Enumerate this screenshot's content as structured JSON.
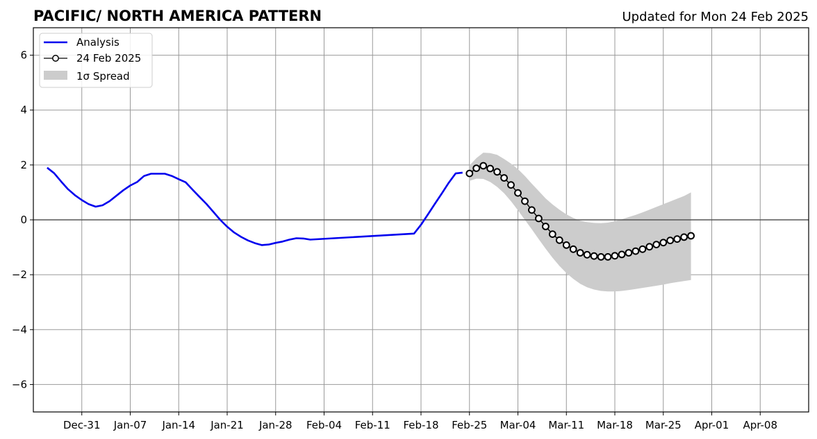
{
  "chart_data": {
    "type": "line",
    "title": "PACIFIC/ NORTH AMERICA PATTERN",
    "subtitle": "Updated for Mon 24 Feb 2025",
    "ylim": [
      -7,
      7
    ],
    "yticks": [
      -6,
      -4,
      -2,
      0,
      2,
      4,
      6
    ],
    "ytick_labels": [
      "−6",
      "−4",
      "−2",
      "0",
      "2",
      "4",
      "6"
    ],
    "x_start": "2024-12-24",
    "x_end": "2025-04-15",
    "xtick_dates": [
      "2024-12-31",
      "2025-01-07",
      "2025-01-14",
      "2025-01-21",
      "2025-01-28",
      "2025-02-04",
      "2025-02-11",
      "2025-02-18",
      "2025-02-25",
      "2025-03-04",
      "2025-03-11",
      "2025-03-18",
      "2025-03-25",
      "2025-04-01",
      "2025-04-08"
    ],
    "xtick_labels": [
      "Dec-31",
      "Jan-07",
      "Jan-14",
      "Jan-21",
      "Jan-28",
      "Feb-04",
      "Feb-11",
      "Feb-18",
      "Feb-25",
      "Mar-04",
      "Mar-11",
      "Mar-18",
      "Mar-25",
      "Apr-01",
      "Apr-08"
    ],
    "grid": true,
    "legend_position": "top-left",
    "legend": [
      "Analysis",
      "24 Feb 2025",
      "1σ Spread"
    ],
    "colors": {
      "analysis": "#0000ee",
      "forecast_line": "#000000",
      "spread": "#cccccc",
      "grid": "#999999",
      "zero_line": "#555555"
    },
    "series": [
      {
        "name": "Analysis",
        "x": [
          "2024-12-26",
          "2024-12-27",
          "2024-12-28",
          "2024-12-29",
          "2024-12-30",
          "2024-12-31",
          "2025-01-01",
          "2025-01-02",
          "2025-01-03",
          "2025-01-04",
          "2025-01-05",
          "2025-01-06",
          "2025-01-07",
          "2025-01-08",
          "2025-01-09",
          "2025-01-10",
          "2025-01-11",
          "2025-01-12",
          "2025-01-13",
          "2025-01-14",
          "2025-01-15",
          "2025-01-16",
          "2025-01-17",
          "2025-01-18",
          "2025-01-19",
          "2025-01-20",
          "2025-01-21",
          "2025-01-22",
          "2025-01-23",
          "2025-01-24",
          "2025-01-25",
          "2025-01-26",
          "2025-01-27",
          "2025-01-28",
          "2025-01-29",
          "2025-01-30",
          "2025-01-31",
          "2025-02-01",
          "2025-02-02",
          "2025-02-17",
          "2025-02-18",
          "2025-02-19",
          "2025-02-20",
          "2025-02-21",
          "2025-02-22",
          "2025-02-23",
          "2025-02-24"
        ],
        "values": [
          1.9,
          1.7,
          1.4,
          1.12,
          0.9,
          0.72,
          0.57,
          0.48,
          0.53,
          0.68,
          0.88,
          1.08,
          1.25,
          1.38,
          1.6,
          1.68,
          1.68,
          1.68,
          1.6,
          1.48,
          1.37,
          1.1,
          0.84,
          0.58,
          0.29,
          0.0,
          -0.25,
          -0.46,
          -0.62,
          -0.75,
          -0.85,
          -0.92,
          -0.9,
          -0.84,
          -0.79,
          -0.72,
          -0.67,
          -0.68,
          -0.72,
          -0.5,
          -0.18,
          0.2,
          0.58,
          0.96,
          1.35,
          1.69,
          1.72
        ]
      },
      {
        "name": "24 Feb 2025",
        "x": [
          "2025-02-25",
          "2025-02-26",
          "2025-02-27",
          "2025-02-28",
          "2025-03-01",
          "2025-03-02",
          "2025-03-03",
          "2025-03-04",
          "2025-03-05",
          "2025-03-06",
          "2025-03-07",
          "2025-03-08",
          "2025-03-09",
          "2025-03-10",
          "2025-03-11",
          "2025-03-12",
          "2025-03-13",
          "2025-03-14",
          "2025-03-15",
          "2025-03-16",
          "2025-03-17",
          "2025-03-18",
          "2025-03-19",
          "2025-03-20",
          "2025-03-21",
          "2025-03-22",
          "2025-03-23",
          "2025-03-24",
          "2025-03-25",
          "2025-03-26",
          "2025-03-27",
          "2025-03-28",
          "2025-03-29"
        ],
        "values": [
          1.69,
          1.88,
          1.97,
          1.87,
          1.75,
          1.53,
          1.27,
          0.98,
          0.68,
          0.36,
          0.05,
          -0.24,
          -0.52,
          -0.74,
          -0.92,
          -1.07,
          -1.2,
          -1.27,
          -1.32,
          -1.35,
          -1.35,
          -1.31,
          -1.26,
          -1.2,
          -1.14,
          -1.07,
          -0.98,
          -0.9,
          -0.83,
          -0.75,
          -0.7,
          -0.63,
          -0.58
        ]
      }
    ],
    "spread": {
      "name": "1σ Spread",
      "x": [
        "2025-02-25",
        "2025-02-26",
        "2025-02-27",
        "2025-02-28",
        "2025-03-01",
        "2025-03-02",
        "2025-03-03",
        "2025-03-04",
        "2025-03-05",
        "2025-03-06",
        "2025-03-07",
        "2025-03-08",
        "2025-03-09",
        "2025-03-10",
        "2025-03-11",
        "2025-03-12",
        "2025-03-13",
        "2025-03-14",
        "2025-03-15",
        "2025-03-16",
        "2025-03-17",
        "2025-03-18",
        "2025-03-19",
        "2025-03-20",
        "2025-03-21",
        "2025-03-22",
        "2025-03-23",
        "2025-03-24",
        "2025-03-25",
        "2025-03-26",
        "2025-03-27",
        "2025-03-28",
        "2025-03-29"
      ],
      "upper": [
        1.98,
        2.25,
        2.45,
        2.43,
        2.37,
        2.22,
        2.05,
        1.85,
        1.6,
        1.32,
        1.05,
        0.78,
        0.56,
        0.37,
        0.2,
        0.07,
        -0.03,
        -0.08,
        -0.11,
        -0.12,
        -0.1,
        -0.05,
        0.02,
        0.1,
        0.18,
        0.27,
        0.37,
        0.47,
        0.57,
        0.67,
        0.77,
        0.87,
        1.0
      ],
      "lower": [
        1.42,
        1.5,
        1.49,
        1.38,
        1.2,
        0.97,
        0.68,
        0.35,
        0.0,
        -0.34,
        -0.7,
        -1.05,
        -1.38,
        -1.68,
        -1.94,
        -2.15,
        -2.33,
        -2.46,
        -2.54,
        -2.59,
        -2.61,
        -2.61,
        -2.59,
        -2.56,
        -2.52,
        -2.48,
        -2.44,
        -2.4,
        -2.36,
        -2.31,
        -2.27,
        -2.23,
        -2.19
      ]
    }
  }
}
